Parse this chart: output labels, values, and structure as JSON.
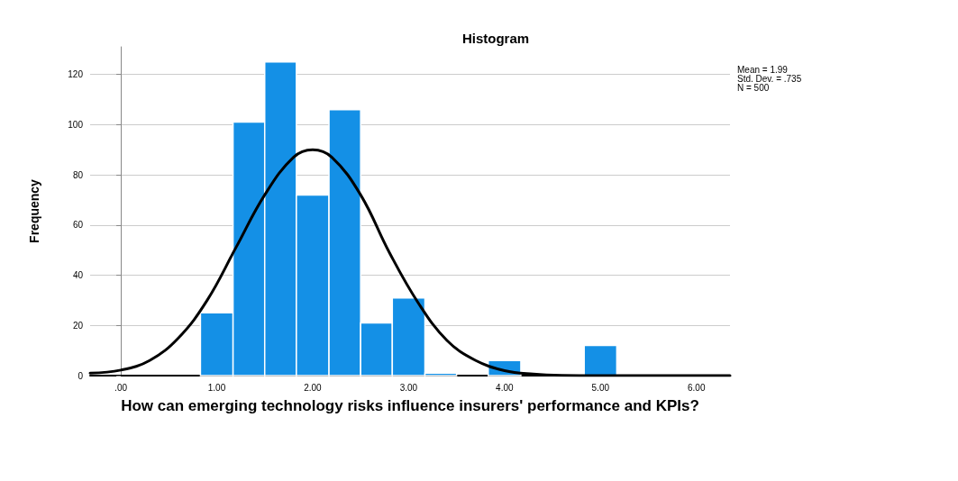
{
  "chart_data": {
    "type": "histogram",
    "title": "Histogram",
    "xlabel": "How can emerging technology risks influence insurers' performance and KPIs?",
    "ylabel": "Frequency",
    "bins": [
      0.83,
      1.17,
      1.5,
      1.83,
      2.17,
      2.5,
      2.83,
      3.17,
      3.5,
      3.83,
      4.17,
      4.83,
      5.17
    ],
    "values": [
      25,
      101,
      125,
      72,
      106,
      21,
      31,
      1,
      0,
      6,
      0,
      12
    ],
    "color": "#1490e6",
    "series": [
      {
        "type": "line",
        "color": "#000000",
        "x": [
          -0.32,
          0,
          0.3,
          0.6,
          0.9,
          1.2,
          1.5,
          1.8,
          2.0,
          2.2,
          2.5,
          2.8,
          3.1,
          3.4,
          3.7,
          4.0,
          4.3,
          4.6,
          5.0,
          6.35
        ],
        "values": [
          1,
          2.2,
          6,
          15,
          30,
          51,
          72,
          87,
          90,
          87,
          72,
          49,
          29,
          14,
          6,
          2,
          0.6,
          0.1,
          0,
          0
        ]
      }
    ],
    "xlim": [
      -0.32,
      6.35
    ],
    "xticks": [
      {
        "value": 0,
        "label": ".00"
      },
      {
        "value": 1,
        "label": "1.00"
      },
      {
        "value": 2,
        "label": "2.00"
      },
      {
        "value": 3,
        "label": "3.00"
      },
      {
        "value": 4,
        "label": "4.00"
      },
      {
        "value": 5,
        "label": "5.00"
      },
      {
        "value": 6,
        "label": "6.00"
      }
    ],
    "ylim": [
      0,
      131
    ],
    "yticks": [
      0,
      20,
      40,
      60,
      80,
      100,
      120
    ],
    "grid": "y",
    "marker": "none",
    "line_style": "solid",
    "annotations": [
      "Mean = 1.99",
      "Std. Dev. = .735",
      "N = 500"
    ]
  }
}
